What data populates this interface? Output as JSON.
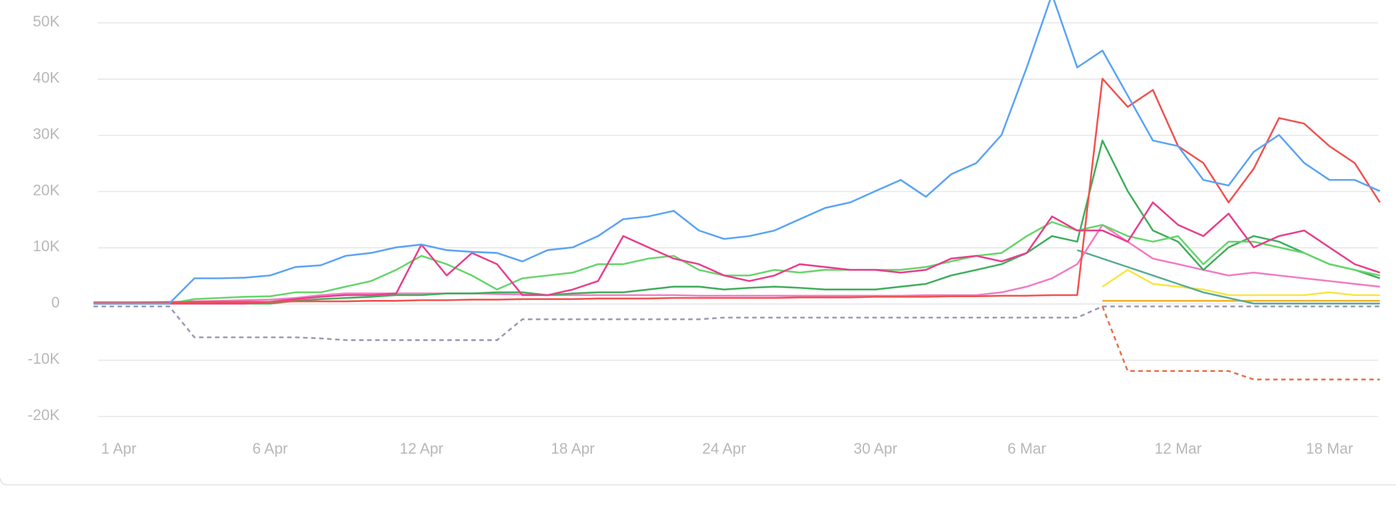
{
  "chart_data": {
    "type": "line",
    "categories": [
      null,
      "1 Apr",
      null,
      null,
      null,
      null,
      null,
      "6 Apr",
      null,
      null,
      null,
      null,
      null,
      "12 Apr",
      null,
      null,
      null,
      null,
      null,
      "18 Apr",
      null,
      null,
      null,
      null,
      null,
      "24 Apr",
      null,
      null,
      null,
      null,
      null,
      "30 Apr",
      null,
      null,
      null,
      null,
      null,
      "6 Mar",
      null,
      null,
      null,
      null,
      null,
      "12 Mar",
      null,
      null,
      null,
      null,
      null,
      "18 Mar",
      null,
      null
    ],
    "ylim": [
      -20000,
      54000
    ],
    "yticks": [
      {
        "value": -20000,
        "label": "-20K"
      },
      {
        "value": -10000,
        "label": "-10K"
      },
      0,
      {
        "value": 10000,
        "label": "10K"
      },
      {
        "value": 20000,
        "label": "20K"
      },
      {
        "value": 30000,
        "label": "30K"
      },
      {
        "value": 40000,
        "label": "40K"
      },
      {
        "value": 50000,
        "label": "50K"
      }
    ],
    "grid": true,
    "series": [
      {
        "color": "#9c98b5",
        "dashed": true,
        "values": [
          -500,
          -500,
          -500,
          -500,
          -6000,
          -6000,
          -6000,
          -6000,
          -6000,
          -6200,
          -6500,
          -6500,
          -6500,
          -6500,
          -6500,
          -6500,
          -6500,
          -2800,
          -2800,
          -2800,
          -2800,
          -2800,
          -2800,
          -2800,
          -2800,
          -2500,
          -2500,
          -2500,
          -2500,
          -2500,
          -2500,
          -2500,
          -2500,
          -2500,
          -2500,
          -2500,
          -2500,
          -2500,
          -2500,
          -2500,
          -500,
          -500,
          -500,
          -500,
          -500,
          -500,
          -500,
          -500,
          -500,
          -500,
          -500,
          -500
        ]
      },
      {
        "color": "#e8704a",
        "dashed": true,
        "values": [
          null,
          null,
          null,
          null,
          null,
          null,
          null,
          null,
          null,
          null,
          null,
          null,
          null,
          null,
          null,
          null,
          null,
          null,
          null,
          null,
          null,
          null,
          null,
          null,
          null,
          null,
          null,
          null,
          null,
          null,
          null,
          null,
          null,
          null,
          null,
          null,
          null,
          null,
          null,
          null,
          -500,
          -12000,
          -12000,
          -12000,
          -12000,
          -12000,
          -13500,
          -13500,
          -13500,
          -13500,
          -13500,
          -13500
        ]
      },
      {
        "color": "#f0b429",
        "values": [
          null,
          null,
          null,
          null,
          null,
          null,
          null,
          null,
          null,
          null,
          null,
          null,
          null,
          null,
          null,
          null,
          null,
          null,
          null,
          null,
          null,
          null,
          null,
          null,
          null,
          null,
          null,
          null,
          null,
          null,
          null,
          null,
          null,
          null,
          null,
          null,
          null,
          null,
          null,
          null,
          500,
          500,
          500,
          500,
          500,
          500,
          500,
          500,
          500,
          500,
          500,
          500
        ]
      },
      {
        "color": "#f5e642",
        "values": [
          null,
          null,
          null,
          null,
          null,
          null,
          null,
          null,
          null,
          null,
          null,
          null,
          null,
          null,
          null,
          null,
          null,
          null,
          null,
          null,
          null,
          null,
          null,
          null,
          null,
          null,
          null,
          null,
          null,
          null,
          null,
          null,
          null,
          null,
          null,
          null,
          null,
          null,
          null,
          null,
          3000,
          6000,
          3500,
          3000,
          2500,
          1500,
          1500,
          1500,
          1500,
          2000,
          1500,
          1500
        ]
      },
      {
        "color": "#5aab97",
        "values": [
          null,
          null,
          null,
          null,
          null,
          null,
          null,
          null,
          null,
          null,
          null,
          null,
          null,
          null,
          null,
          null,
          null,
          null,
          null,
          null,
          null,
          null,
          null,
          null,
          null,
          null,
          null,
          null,
          null,
          null,
          null,
          null,
          null,
          null,
          null,
          null,
          null,
          null,
          null,
          9500,
          8000,
          6500,
          5000,
          3500,
          2000,
          1000,
          0,
          0,
          0,
          0,
          0,
          0
        ]
      },
      {
        "color": "#f37ac4",
        "values": [
          0,
          0,
          200,
          300,
          400,
          500,
          600,
          700,
          1000,
          1500,
          1800,
          1800,
          1800,
          1800,
          1800,
          1800,
          1700,
          1600,
          1500,
          1500,
          1500,
          1500,
          1500,
          1500,
          1400,
          1400,
          1400,
          1400,
          1400,
          1400,
          1400,
          1400,
          1400,
          1500,
          1500,
          1500,
          2000,
          3000,
          4500,
          7000,
          14000,
          11000,
          8000,
          7000,
          6000,
          5000,
          5500,
          5000,
          4500,
          4000,
          3500,
          3000
        ]
      },
      {
        "color": "#3fae5c",
        "values": [
          0,
          0,
          0,
          0,
          0,
          0,
          0,
          0,
          500,
          800,
          1000,
          1200,
          1500,
          1500,
          1800,
          1800,
          2000,
          2000,
          1500,
          1800,
          2000,
          2000,
          2500,
          3000,
          3000,
          2500,
          2800,
          3000,
          2800,
          2500,
          2500,
          2500,
          3000,
          3500,
          5000,
          6000,
          7000,
          9000,
          12000,
          11000,
          29000,
          20000,
          13000,
          11000,
          6000,
          10000,
          12000,
          11000,
          9000,
          7000,
          6000,
          4500
        ]
      },
      {
        "color": "#66d56b",
        "values": [
          0,
          0,
          0,
          0,
          800,
          1000,
          1200,
          1300,
          2000,
          2000,
          3000,
          4000,
          6000,
          8500,
          7000,
          5000,
          2500,
          4500,
          5000,
          5500,
          7000,
          7000,
          8000,
          8500,
          6000,
          5000,
          5000,
          6000,
          5500,
          6000,
          6000,
          6000,
          6000,
          6500,
          7500,
          8500,
          9000,
          12000,
          14500,
          13000,
          14000,
          12000,
          11000,
          12000,
          7000,
          11000,
          11000,
          10000,
          9000,
          7000,
          6000,
          5000
        ]
      },
      {
        "color": "#e83e8c",
        "values": [
          0,
          0,
          0,
          0,
          0,
          0,
          0,
          300,
          800,
          1200,
          1500,
          1500,
          1800,
          10500,
          5000,
          9000,
          7000,
          1500,
          1500,
          2500,
          4000,
          12000,
          10000,
          8000,
          7000,
          5000,
          4000,
          5000,
          7000,
          6500,
          6000,
          6000,
          5500,
          6000,
          8000,
          8500,
          7500,
          9000,
          15500,
          13000,
          13000,
          11000,
          18000,
          14000,
          12000,
          16000,
          10000,
          12000,
          13000,
          10000,
          7000,
          5500
        ]
      },
      {
        "color": "#f0524f",
        "values": [
          200,
          200,
          200,
          200,
          300,
          300,
          300,
          300,
          400,
          400,
          400,
          500,
          500,
          600,
          600,
          700,
          700,
          800,
          800,
          800,
          900,
          900,
          900,
          1000,
          1000,
          1000,
          1000,
          1000,
          1100,
          1100,
          1100,
          1200,
          1200,
          1200,
          1300,
          1300,
          1400,
          1400,
          1500,
          1500,
          40000,
          35000,
          38000,
          28000,
          25000,
          18000,
          24000,
          33000,
          32000,
          28000,
          25000,
          18000
        ]
      },
      {
        "color": "#5ba3f5",
        "values": [
          0,
          0,
          0,
          0,
          4500,
          4500,
          4600,
          5000,
          6500,
          6800,
          8500,
          9000,
          10000,
          10500,
          9500,
          9200,
          9000,
          7500,
          9500,
          10000,
          12000,
          15000,
          15500,
          16500,
          13000,
          11500,
          12000,
          13000,
          15000,
          17000,
          18000,
          20000,
          22000,
          19000,
          23000,
          25000,
          30000,
          42000,
          55000,
          42000,
          45000,
          37000,
          29000,
          28000,
          22000,
          21000,
          27000,
          30000,
          25000,
          22000,
          22000,
          20000
        ]
      }
    ]
  }
}
